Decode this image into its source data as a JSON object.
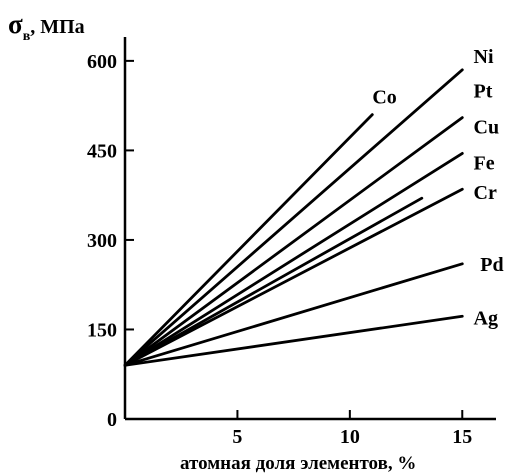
{
  "chart_data": {
    "type": "line",
    "ylabel": {
      "symbol": "σ",
      "subscript": "в",
      "rest": ", МПа"
    },
    "xlabel": "атомная доля элементов,  %",
    "xlim": [
      0,
      16.5
    ],
    "ylim": [
      0,
      640
    ],
    "xticks": [
      5,
      10,
      15
    ],
    "yticks": [
      0,
      150,
      300,
      450,
      600
    ],
    "grid": false,
    "legend": "none",
    "series": [
      {
        "name": "Co",
        "x": [
          0,
          11
        ],
        "y": [
          90,
          510
        ],
        "label_at": [
          11,
          540
        ]
      },
      {
        "name": "Ni",
        "x": [
          0,
          15
        ],
        "y": [
          90,
          585
        ],
        "label_at": [
          15.5,
          608
        ]
      },
      {
        "name": "Pt",
        "x": [
          0,
          15
        ],
        "y": [
          90,
          505
        ],
        "label_at": [
          15.5,
          550
        ]
      },
      {
        "name": "Cu",
        "x": [
          0,
          15
        ],
        "y": [
          90,
          445
        ],
        "label_at": [
          15.5,
          490
        ]
      },
      {
        "name": "Fe",
        "x": [
          0,
          13.2
        ],
        "y": [
          90,
          370
        ],
        "label_at": [
          15.5,
          430
        ]
      },
      {
        "name": "Cr",
        "x": [
          0,
          15
        ],
        "y": [
          90,
          385
        ],
        "label_at": [
          15.5,
          380
        ]
      },
      {
        "name": "Pd",
        "x": [
          0,
          15
        ],
        "y": [
          90,
          260
        ],
        "label_at": [
          15.8,
          260
        ]
      },
      {
        "name": "Ag",
        "x": [
          0,
          15
        ],
        "y": [
          90,
          172
        ],
        "label_at": [
          15.5,
          170
        ]
      }
    ]
  }
}
